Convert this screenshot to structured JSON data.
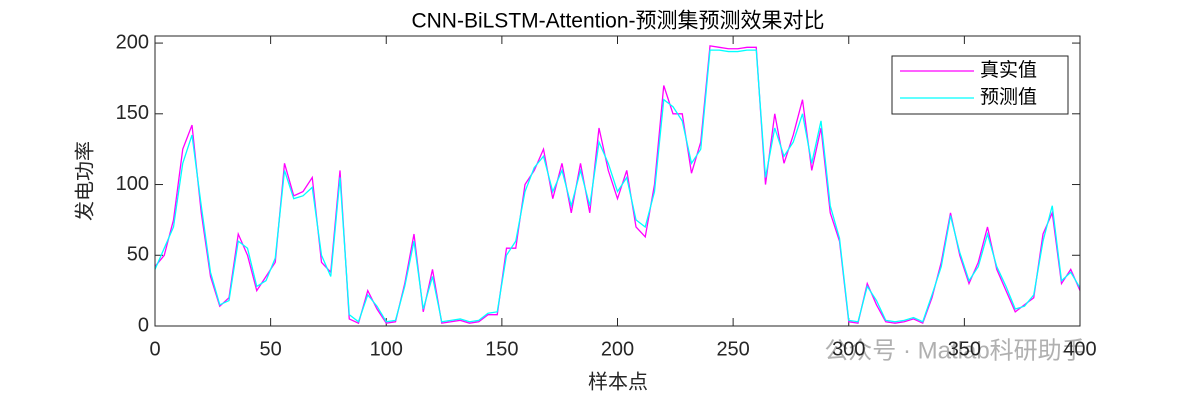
{
  "chart_data": {
    "type": "line",
    "title": "CNN-BiLSTM-Attention-预测集预测效果对比",
    "xlabel": "样本点",
    "ylabel": "发电功率",
    "watermark": "公众号 · Matlab科研助手",
    "x": [
      0,
      4,
      8,
      12,
      16,
      20,
      24,
      28,
      32,
      36,
      40,
      44,
      48,
      52,
      56,
      60,
      64,
      68,
      72,
      76,
      80,
      84,
      88,
      92,
      96,
      100,
      104,
      108,
      112,
      116,
      120,
      124,
      128,
      132,
      136,
      140,
      144,
      148,
      152,
      156,
      160,
      164,
      168,
      172,
      176,
      180,
      184,
      188,
      192,
      196,
      200,
      204,
      208,
      212,
      216,
      220,
      224,
      228,
      232,
      236,
      240,
      244,
      248,
      252,
      256,
      260,
      264,
      268,
      272,
      276,
      280,
      284,
      288,
      292,
      296,
      300,
      304,
      308,
      312,
      316,
      320,
      324,
      328,
      332,
      336,
      340,
      344,
      348,
      352,
      356,
      360,
      364,
      368,
      372,
      376,
      380,
      384,
      388,
      392,
      396,
      400
    ],
    "series": [
      {
        "name": "真实值",
        "color": "#ff00ff",
        "values": [
          42,
          50,
          75,
          125,
          142,
          80,
          35,
          14,
          20,
          65,
          50,
          25,
          35,
          45,
          115,
          92,
          95,
          105,
          45,
          38,
          110,
          5,
          2,
          25,
          12,
          2,
          3,
          30,
          65,
          10,
          40,
          2,
          3,
          4,
          2,
          3,
          8,
          8,
          55,
          55,
          100,
          110,
          125,
          90,
          115,
          80,
          115,
          80,
          140,
          110,
          90,
          110,
          70,
          63,
          100,
          170,
          150,
          150,
          108,
          130,
          198,
          197,
          196,
          196,
          197,
          197,
          100,
          150,
          115,
          135,
          160,
          110,
          140,
          80,
          60,
          3,
          2,
          30,
          15,
          3,
          2,
          3,
          5,
          2,
          20,
          45,
          80,
          50,
          30,
          45,
          70,
          40,
          25,
          10,
          15,
          20,
          65,
          80,
          30,
          40,
          25
        ]
      },
      {
        "name": "预测值",
        "color": "#00ffff",
        "values": [
          40,
          55,
          70,
          115,
          135,
          85,
          38,
          15,
          18,
          60,
          55,
          28,
          32,
          48,
          110,
          90,
          92,
          98,
          50,
          35,
          105,
          8,
          3,
          22,
          14,
          3,
          4,
          28,
          60,
          12,
          35,
          3,
          4,
          5,
          3,
          4,
          9,
          10,
          50,
          60,
          95,
          112,
          120,
          95,
          110,
          85,
          110,
          85,
          130,
          115,
          95,
          105,
          75,
          70,
          95,
          160,
          155,
          145,
          115,
          125,
          195,
          195,
          194,
          194,
          195,
          195,
          105,
          140,
          120,
          130,
          150,
          115,
          145,
          85,
          62,
          4,
          3,
          28,
          18,
          4,
          3,
          4,
          6,
          3,
          22,
          42,
          78,
          52,
          32,
          42,
          65,
          42,
          28,
          12,
          14,
          22,
          60,
          85,
          32,
          38,
          27
        ]
      }
    ],
    "xlim": [
      0,
      400
    ],
    "xticks": [
      0,
      50,
      100,
      150,
      200,
      250,
      300,
      350,
      400
    ],
    "ylim": [
      0,
      205
    ],
    "yticks": [
      0,
      50,
      100,
      150,
      200
    ],
    "legend": "northeast"
  }
}
